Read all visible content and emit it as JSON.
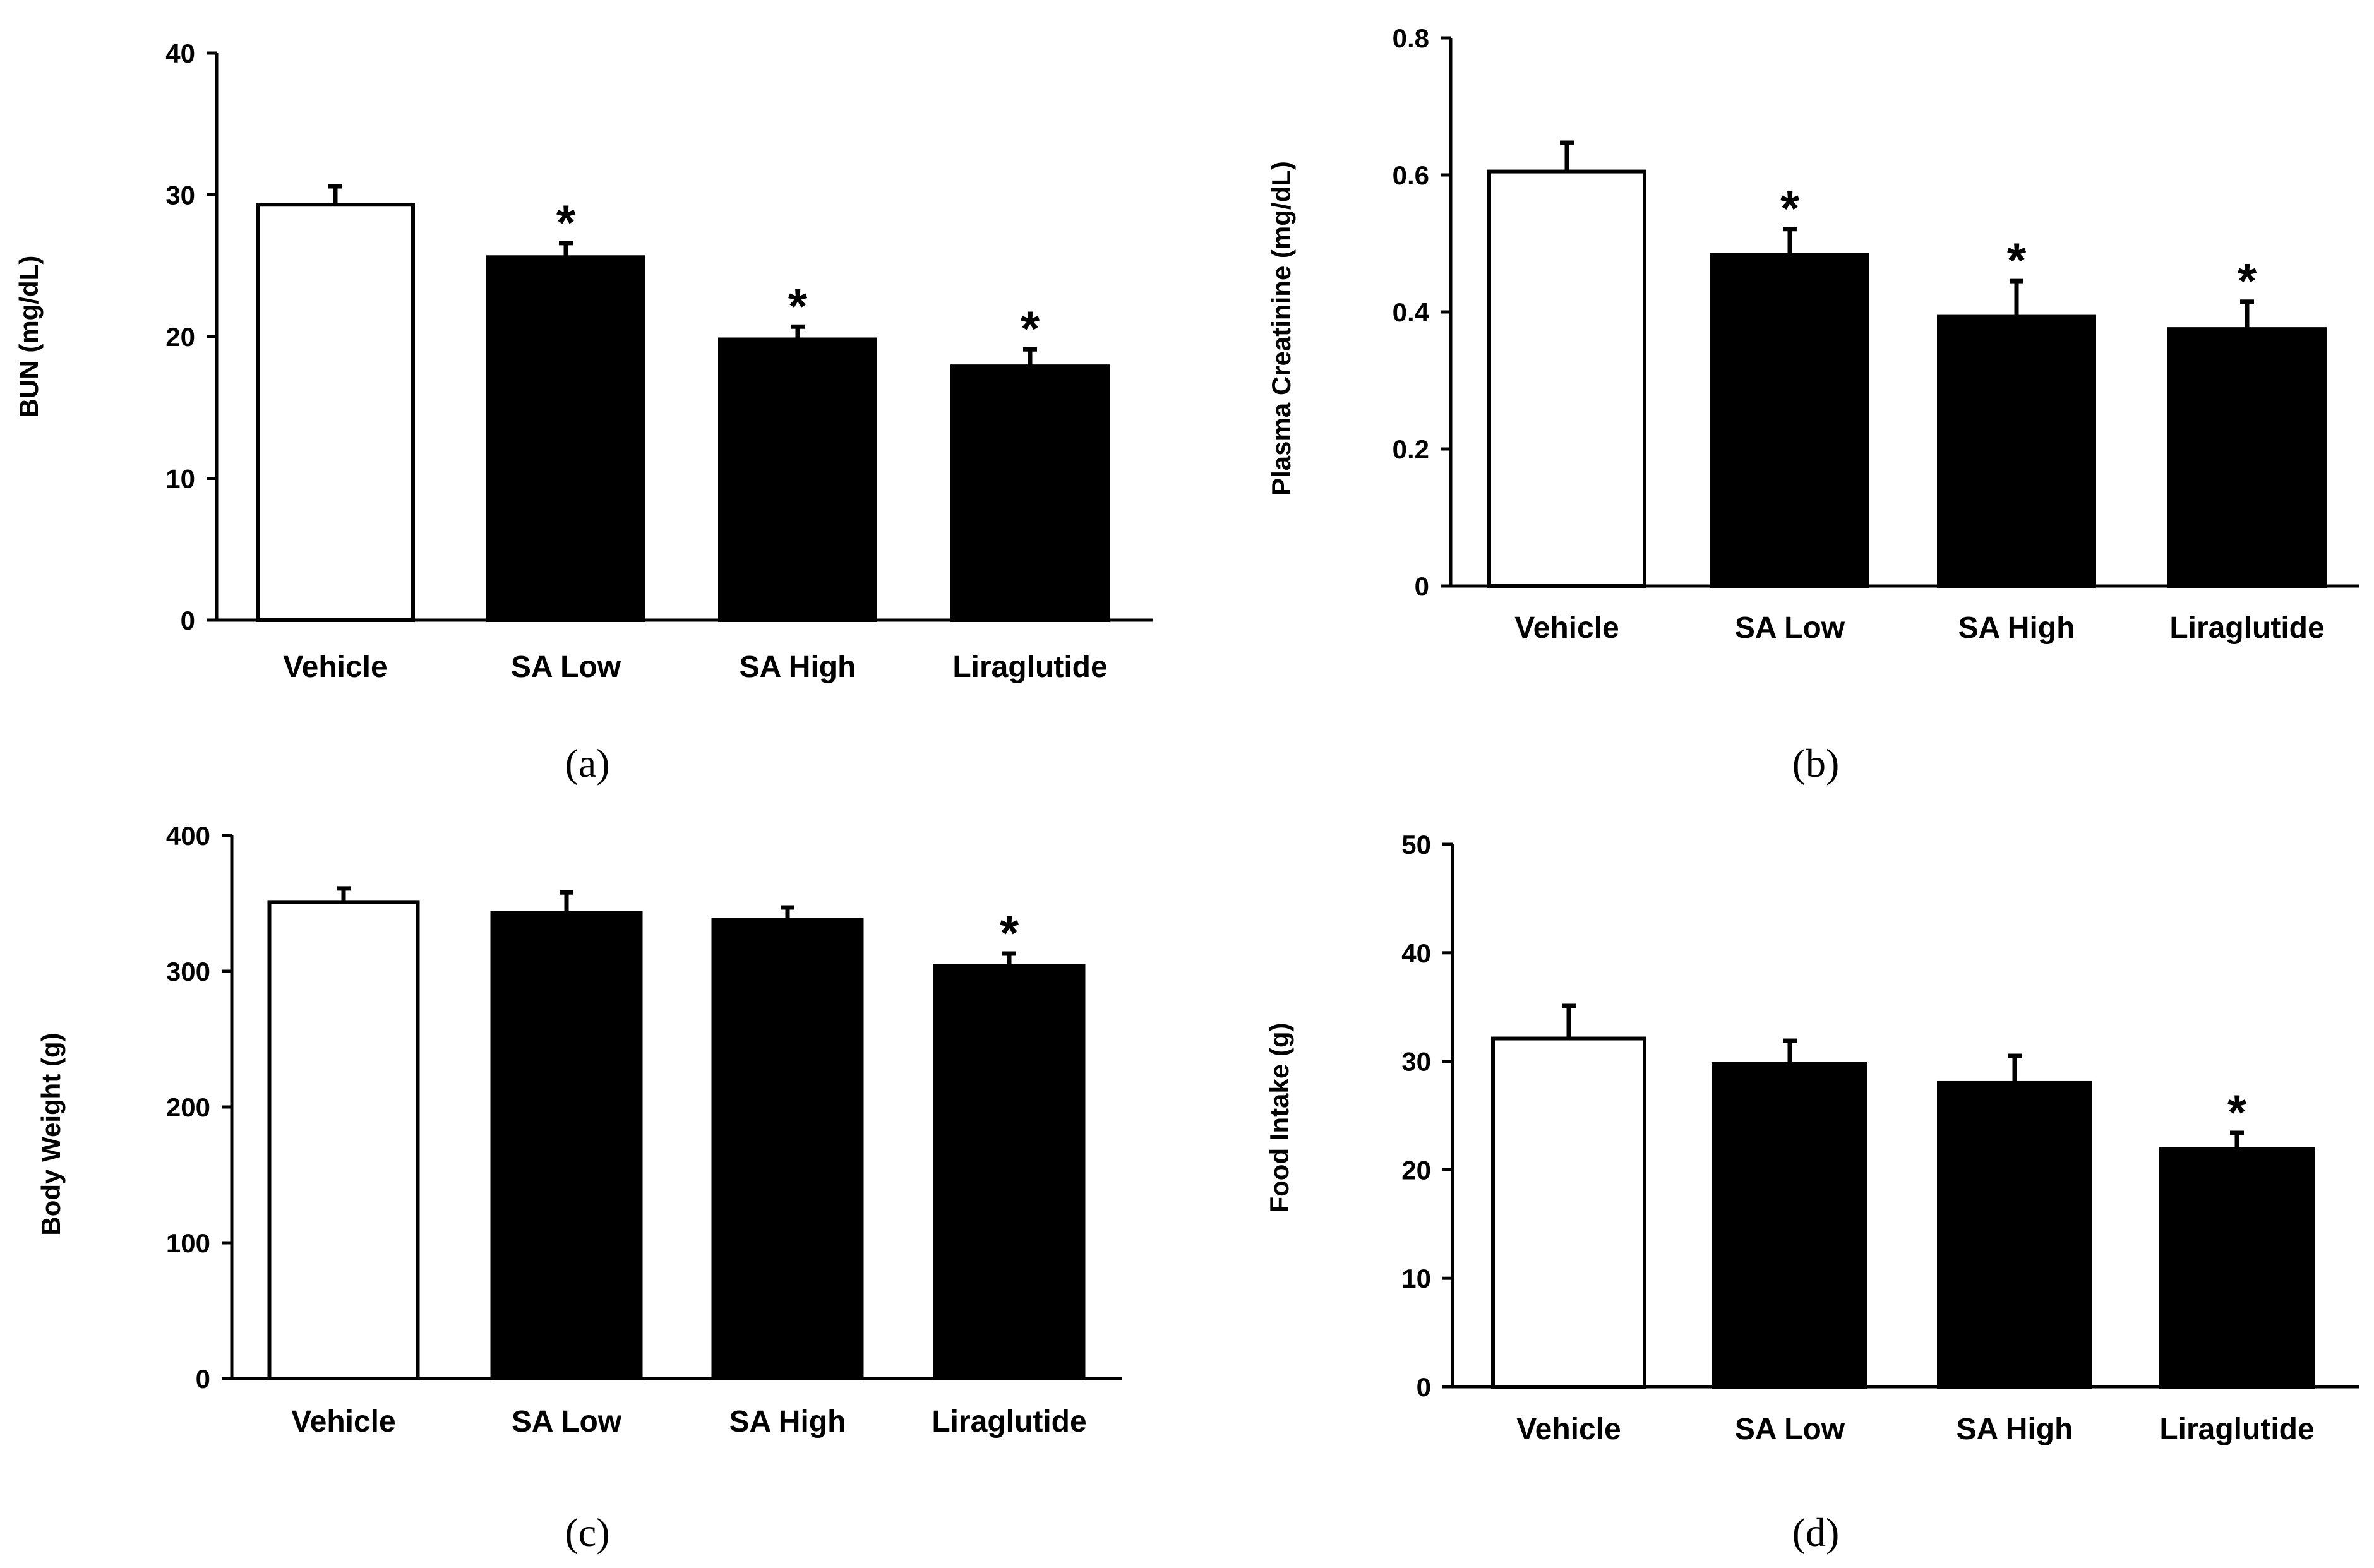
{
  "colors": {
    "control": "#ffffff",
    "treatment": "#000000",
    "axis": "#000000"
  },
  "chart_data": [
    {
      "panel": "(a)",
      "type": "bar",
      "categories": [
        "Vehicle",
        "SA Low",
        "SA High",
        "Liraglutide"
      ],
      "values": [
        29.3,
        25.6,
        19.8,
        17.9
      ],
      "errors": [
        1.3,
        1.0,
        0.9,
        1.2
      ],
      "significant": [
        false,
        true,
        true,
        true
      ],
      "significance_marker": "*",
      "ylabel": "BUN (mg/dL)",
      "ylim": [
        0,
        40
      ],
      "yticks": [
        "0",
        "10",
        "20",
        "30",
        "40"
      ],
      "tick_values": [
        0,
        10,
        20,
        30,
        40
      ],
      "caption": "(a)"
    },
    {
      "panel": "(b)",
      "type": "bar",
      "categories": [
        "Vehicle",
        "SA Low",
        "SA High",
        "Liraglutide"
      ],
      "values": [
        0.605,
        0.483,
        0.393,
        0.375
      ],
      "errors": [
        0.042,
        0.038,
        0.052,
        0.04
      ],
      "significant": [
        false,
        true,
        true,
        true
      ],
      "significance_marker": "*",
      "ylabel": "Plasma Creatinine (mg/dL)",
      "ylim": [
        0,
        0.8
      ],
      "yticks": [
        "0",
        "0.2",
        "0.4",
        "0.6",
        "0.8"
      ],
      "tick_values": [
        0,
        0.2,
        0.4,
        0.6,
        0.8
      ],
      "caption": "(b)"
    },
    {
      "panel": "(c)",
      "type": "bar",
      "categories": [
        "Vehicle",
        "SA Low",
        "SA High",
        "Liraglutide"
      ],
      "values": [
        351,
        343,
        338,
        304
      ],
      "errors": [
        10,
        15,
        9,
        9
      ],
      "significant": [
        false,
        false,
        false,
        true
      ],
      "significance_marker": "*",
      "ylabel": "Body Weight (g)",
      "ylim": [
        0,
        400
      ],
      "yticks": [
        "0",
        "100",
        "200",
        "300",
        "400"
      ],
      "tick_values": [
        0,
        100,
        200,
        300,
        400
      ],
      "caption": "(c)"
    },
    {
      "panel": "(d)",
      "type": "bar",
      "categories": [
        "Vehicle",
        "SA Low",
        "SA High",
        "Liraglutide"
      ],
      "values": [
        32.1,
        29.8,
        28.0,
        21.9
      ],
      "errors": [
        3.0,
        2.1,
        2.5,
        1.5
      ],
      "significant": [
        false,
        false,
        false,
        true
      ],
      "significance_marker": "*",
      "ylabel": "Food Intake (g)",
      "ylim": [
        0,
        50
      ],
      "yticks": [
        "0",
        "10",
        "20",
        "30",
        "40",
        "50"
      ],
      "tick_values": [
        0,
        10,
        20,
        30,
        40,
        50
      ],
      "caption": "(d)"
    }
  ]
}
